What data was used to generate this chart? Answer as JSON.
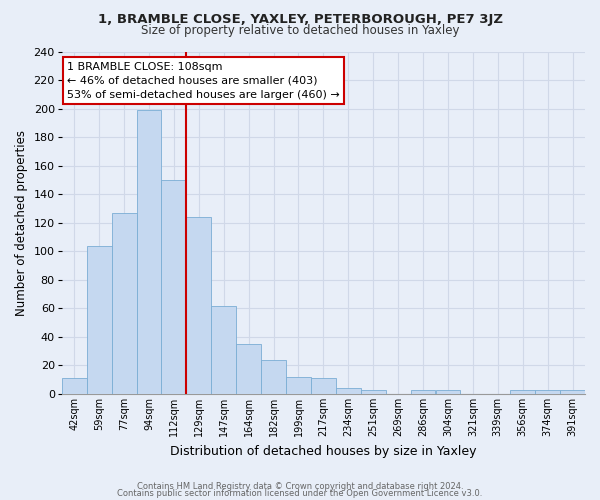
{
  "title": "1, BRAMBLE CLOSE, YAXLEY, PETERBOROUGH, PE7 3JZ",
  "subtitle": "Size of property relative to detached houses in Yaxley",
  "xlabel": "Distribution of detached houses by size in Yaxley",
  "ylabel": "Number of detached properties",
  "bar_labels": [
    "42sqm",
    "59sqm",
    "77sqm",
    "94sqm",
    "112sqm",
    "129sqm",
    "147sqm",
    "164sqm",
    "182sqm",
    "199sqm",
    "217sqm",
    "234sqm",
    "251sqm",
    "269sqm",
    "286sqm",
    "304sqm",
    "321sqm",
    "339sqm",
    "356sqm",
    "374sqm",
    "391sqm"
  ],
  "bar_values": [
    11,
    104,
    127,
    199,
    150,
    124,
    62,
    35,
    24,
    12,
    11,
    4,
    3,
    0,
    3,
    3,
    0,
    0,
    3,
    3,
    3
  ],
  "bar_color": "#c5d8f0",
  "bar_edgecolor": "#7aadd4",
  "vline_color": "#cc0000",
  "annotation_title": "1 BRAMBLE CLOSE: 108sqm",
  "annotation_line1": "← 46% of detached houses are smaller (403)",
  "annotation_line2": "53% of semi-detached houses are larger (460) →",
  "annotation_box_color": "white",
  "annotation_box_edgecolor": "#cc0000",
  "ylim": [
    0,
    240
  ],
  "yticks": [
    0,
    20,
    40,
    60,
    80,
    100,
    120,
    140,
    160,
    180,
    200,
    220,
    240
  ],
  "footer_line1": "Contains HM Land Registry data © Crown copyright and database right 2024.",
  "footer_line2": "Contains public sector information licensed under the Open Government Licence v3.0.",
  "background_color": "#e8eef8",
  "grid_color": "#d0d8e8",
  "plot_bg_color": "#e8eef8"
}
